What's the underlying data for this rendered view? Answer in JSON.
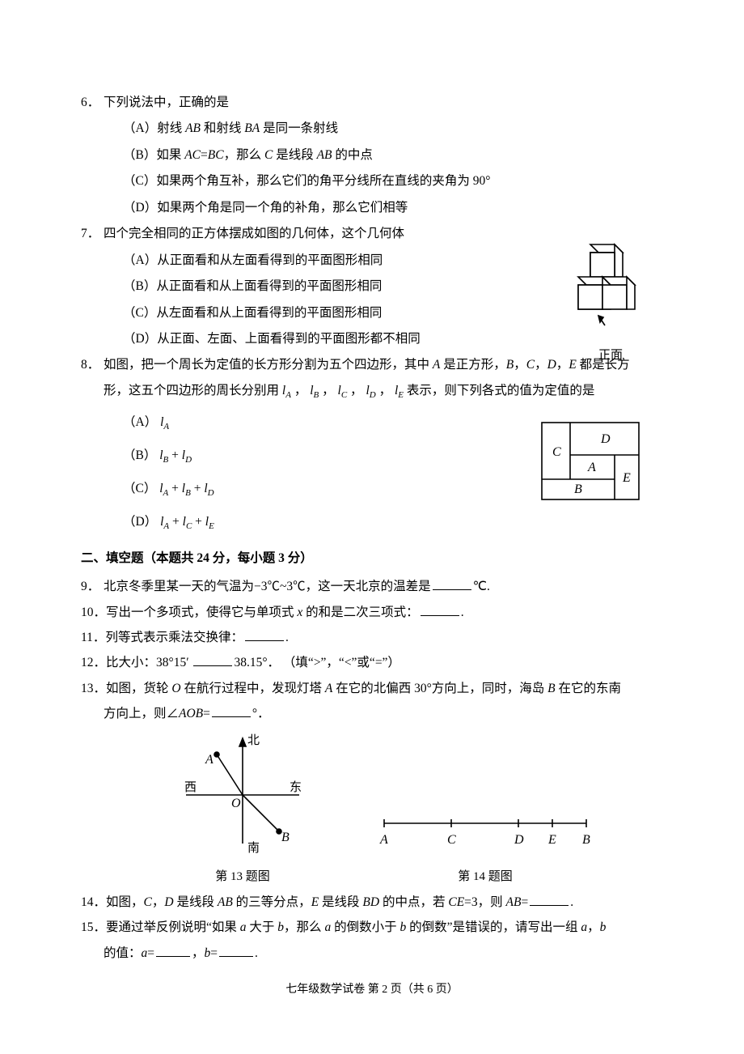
{
  "q6": {
    "num": "6．",
    "stem": "下列说法中，正确的是",
    "A": "（A）射线 <span class=\"italic\">AB</span> 和射线 <span class=\"italic\">BA</span> 是同一条射线",
    "B": "（B）如果 <span class=\"italic\">AC</span>=<span class=\"italic\">BC</span>，那么 <span class=\"italic\">C</span> 是线段 <span class=\"italic\">AB</span> 的中点",
    "C": "（C）如果两个角互补，那么它们的角平分线所在直线的夹角为 90°",
    "D": "（D）如果两个角是同一个角的补角，那么它们相等"
  },
  "q7": {
    "num": "7．",
    "stem": "四个完全相同的正方体摆成如图的几何体，这个几何体",
    "A": "（A）从正面看和从左面看得到的平面图形相同",
    "B": "（B）从正面看和从上面看得到的平面图形相同",
    "C": "（C）从左面看和从上面看得到的平面图形相同",
    "D": "（D）从正面、左面、上面看得到的平面图形都不相同",
    "fig_label": "正面",
    "fig": {
      "stroke": "#000000",
      "fill": "#ffffff",
      "arrow_color": "#000000"
    }
  },
  "q8": {
    "num": "8．",
    "stem1": "如图，把一个周长为定值的长方形分割为五个四边形，其中 <span class=\"italic\">A</span> 是正方形，<span class=\"italic\">B</span>，<span class=\"italic\">C</span>，<span class=\"italic\">D</span>，<span class=\"italic\">E</span> 都是长方",
    "stem2": "形，这五个四边形的周长分别用 <span class=\"italic\">l</span><span class=\"sub\">A</span> ， <span class=\"italic\">l</span><span class=\"sub\">B</span> ， <span class=\"italic\">l</span><span class=\"sub\">C</span> ， <span class=\"italic\">l</span><span class=\"sub\">D</span> ， <span class=\"italic\">l</span><span class=\"sub\">E</span> 表示，则下列各式的值为定值的是",
    "A": "（A） <span class=\"italic\">l</span><span class=\"sub\">A</span>",
    "B": "（B） <span class=\"italic\">l</span><span class=\"sub\">B</span> + <span class=\"italic\">l</span><span class=\"sub\">D</span>",
    "C": "（C） <span class=\"italic\">l</span><span class=\"sub\">A</span> + <span class=\"italic\">l</span><span class=\"sub\">B</span> + <span class=\"italic\">l</span><span class=\"sub\">D</span>",
    "D": "（D） <span class=\"italic\">l</span><span class=\"sub\">A</span> + <span class=\"italic\">l</span><span class=\"sub\">C</span> + <span class=\"italic\">l</span><span class=\"sub\">E</span>",
    "fig": {
      "labels": {
        "A": "A",
        "B": "B",
        "C": "C",
        "D": "D",
        "E": "E"
      },
      "stroke": "#000000",
      "font_style": "italic"
    }
  },
  "section2": "二、填空题（本题共 24 分，每小题 3 分）",
  "q9": {
    "num": "9．",
    "text": "北京冬季里某一天的气温为−3℃~3℃，这一天北京的温差是<span class=\"blank\"></span>℃."
  },
  "q10": {
    "num": "10．",
    "text": "写出一个多项式，使得它与单项式 <span class=\"italic\">x</span> 的和是二次三项式：<span class=\"blank\"></span>."
  },
  "q11": {
    "num": "11．",
    "text": "列等式表示乘法交换律：<span class=\"blank\"></span>."
  },
  "q12": {
    "num": "12．",
    "text": "比大小：38°15′ <span class=\"blank\"></span>38.15°． （填“&gt;”，“&lt;”或“=”）"
  },
  "q13": {
    "num": "13．",
    "text1": "如图，货轮 <span class=\"italic\">O</span> 在航行过程中，发现灯塔 <span class=\"italic\">A</span> 在它的北偏西 30°方向上，同时，海岛 <span class=\"italic\">B</span> 在它的东南",
    "text2": "方向上，则∠<span class=\"italic\">AOB</span>=<span class=\"blank\"></span>°．",
    "fig": {
      "north": "北",
      "south": "南",
      "east": "东",
      "west": "西",
      "A": "A",
      "B": "B",
      "O": "O",
      "stroke": "#000000",
      "dot_fill": "#000000"
    },
    "caption": "第 13 题图"
  },
  "q14": {
    "num": "14．",
    "text": "如图，<span class=\"italic\">C</span>，<span class=\"italic\">D</span> 是线段 <span class=\"italic\">AB</span> 的三等分点，<span class=\"italic\">E</span> 是线段 <span class=\"italic\">BD</span> 的中点，若 <span class=\"italic\">CE</span>=3，则 <span class=\"italic\">AB</span>=<span class=\"blank\"></span>.",
    "fig": {
      "labels": [
        "A",
        "C",
        "D",
        "E",
        "B"
      ],
      "stroke": "#000000"
    },
    "caption": "第 14 题图"
  },
  "q15": {
    "num": "15．",
    "text1": "要通过举反例说明“如果 <span class=\"italic\">a</span> 大于 <span class=\"italic\">b</span>，那么 <span class=\"italic\">a</span> 的倒数小于 <span class=\"italic\">b</span> 的倒数”是错误的，请写出一组 <span class=\"italic\">a</span>，<span class=\"italic\">b</span>",
    "text2": "的值：<span class=\"italic\">a</span>=<span class=\"blank sm\"></span>，<span class=\"italic\">b</span>=<span class=\"blank sm\"></span>."
  },
  "footer": "七年级数学试卷  第 2 页（共 6 页）"
}
